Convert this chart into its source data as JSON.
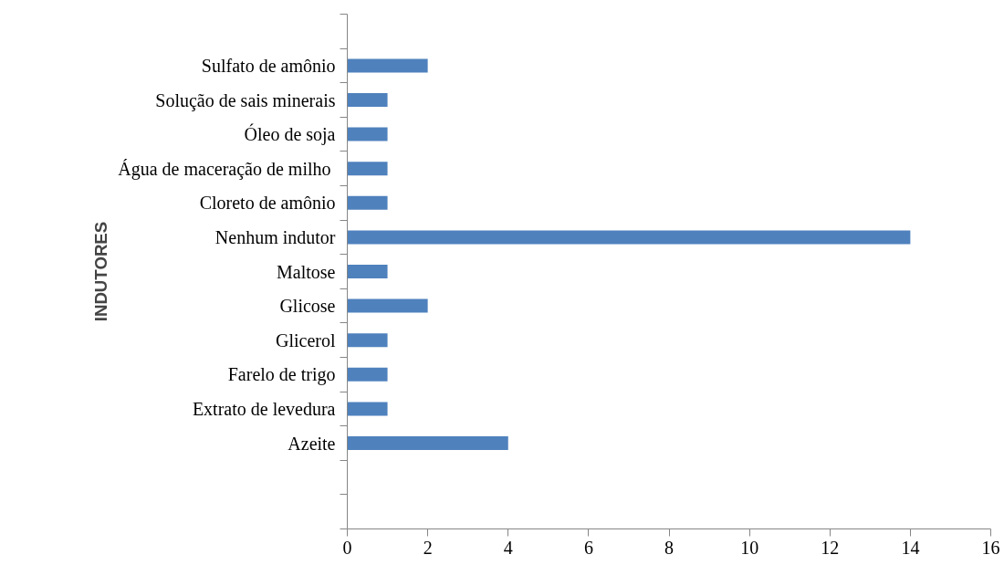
{
  "chart_data": {
    "type": "bar",
    "orientation": "horizontal",
    "ylabel": "INDUTORES",
    "categories": [
      null,
      "Sulfato de amônio",
      "Solução de sais minerais",
      "Óleo de soja",
      "Água de maceração de  milho",
      "Cloreto de amônio",
      "Nenhum indutor",
      "Maltose",
      "Glicose",
      "Glicerol",
      "Farelo de trigo",
      "Extrato de levedura",
      "Azeite",
      null,
      null
    ],
    "values": [
      null,
      2,
      1,
      1,
      1,
      1,
      14,
      1,
      2,
      1,
      1,
      1,
      4,
      null,
      null
    ],
    "color": "#4f81bd",
    "xlim": [
      0,
      16
    ],
    "xticks": [
      0,
      2,
      4,
      6,
      8,
      10,
      12,
      14,
      16
    ],
    "grid": false
  }
}
